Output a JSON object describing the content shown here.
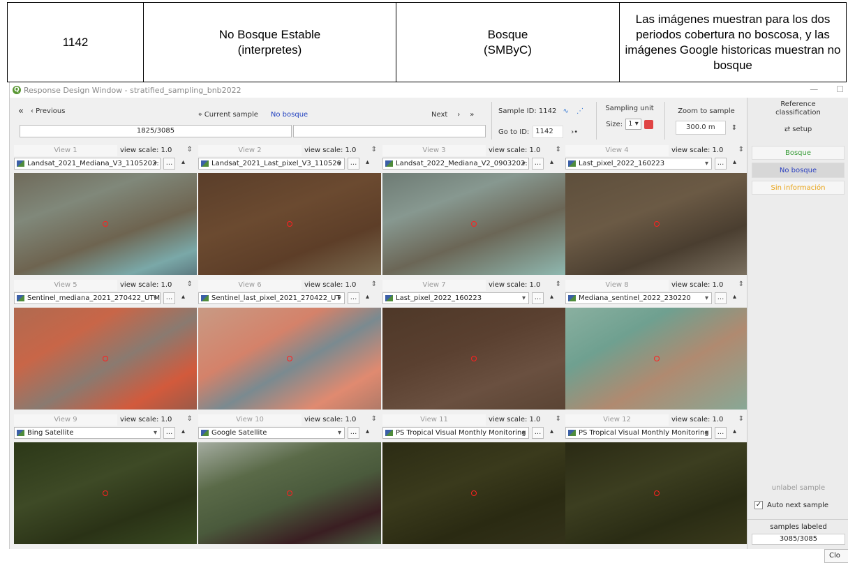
{
  "doc": {
    "id": "1142",
    "interp": "No  Bosque Estable\n(interpretes)",
    "smbyc": "Bosque\n(SMByC)",
    "note": "Las imágenes muestran para los dos periodos cobertura no boscosa, y las imágenes Google historicas muestran no bosque"
  },
  "window": {
    "title": "Response Design Window - stratified_sampling_bnb2022",
    "logo": "Q"
  },
  "toolbar": {
    "first": "«",
    "previous": "‹  Previous",
    "current_label": "⌖ Current sample",
    "current_value": "No bosque",
    "next": "Next",
    "next_arrow": "›",
    "last": "»",
    "progress": "1825/3085",
    "sample_id": "Sample ID: 1142",
    "goto_label": "Go to ID:",
    "goto_value": "1142",
    "goto_arrow": "›•",
    "sampling_unit": "Sampling unit",
    "size_label": "Size:",
    "size_value": "1 ▾",
    "zoom_label": "Zoom to sample",
    "zoom_value": "300.0 m",
    "spin": "⇕"
  },
  "views": [
    {
      "name": "View 1",
      "scale": "view scale: 1.0",
      "layer": "Landsat_2021_Mediana_V3_1105202:"
    },
    {
      "name": "View 2",
      "scale": "view scale: 1.0",
      "layer": "Landsat_2021_Last_pixel_V3_110520"
    },
    {
      "name": "View 3",
      "scale": "view scale: 1.0",
      "layer": "Landsat_2022_Mediana_V2_0903202:"
    },
    {
      "name": "View 4",
      "scale": "view scale: 1.0",
      "layer": "Last_pixel_2022_160223"
    },
    {
      "name": "View 5",
      "scale": "view scale: 1.0",
      "layer": "Sentinel_mediana_2021_270422_UTM"
    },
    {
      "name": "View 6",
      "scale": "view scale: 1.0",
      "layer": "Sentinel_last_pixel_2021_270422_UT"
    },
    {
      "name": "View 7",
      "scale": "view scale: 1.0",
      "layer": "Last_pixel_2022_160223"
    },
    {
      "name": "View 8",
      "scale": "view scale: 1.0",
      "layer": "Mediana_sentinel_2022_230220"
    },
    {
      "name": "View 9",
      "scale": "view scale: 1.0",
      "layer": "Bing Satellite"
    },
    {
      "name": "View 10",
      "scale": "view scale: 1.0",
      "layer": "Google Satellite"
    },
    {
      "name": "View 11",
      "scale": "view scale: 1.0",
      "layer": "PS Tropical Visual Monthly Monitoring"
    },
    {
      "name": "View 12",
      "scale": "view scale: 1.0",
      "layer": "PS Tropical Visual Monthly Monitoring"
    }
  ],
  "layer_controls": {
    "dropdown": "▾",
    "more": "...",
    "pin": "▴"
  },
  "right_panel": {
    "title": "Reference\nclassification",
    "setup": "⇄ setup",
    "classes": [
      {
        "label": "Bosque",
        "color": "#3a9d3a"
      },
      {
        "label": "No bosque",
        "color": "#2a3fbf"
      },
      {
        "label": "Sin información",
        "color": "#e8a317"
      }
    ],
    "unlabel": "unlabel sample",
    "auto_next": "Auto next sample",
    "samples_labeled_label": "samples labeled",
    "samples_labeled": "3085/3085",
    "close": "Clo"
  }
}
